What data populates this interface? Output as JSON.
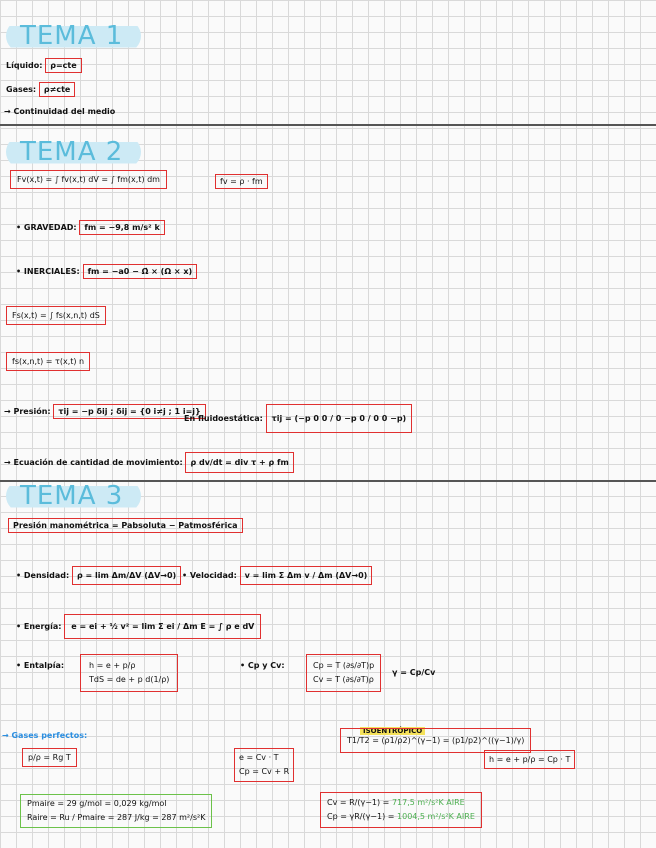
{
  "tema1": {
    "title": "TEMA 1",
    "liquido_label": "Líquido:",
    "liquido_box": "ρ=cte",
    "gases_label": "Gases:",
    "gases_box": "ρ≠cte",
    "continuidad": "→ Continuidad del medio"
  },
  "tema2": {
    "title": "TEMA 2",
    "fv_box": "Fv(x,t) = ∫ fv(x,t) dV = ∫ fm(x,t) dm",
    "fv2_box": "fv = ρ · fm",
    "gravedad_label": "• GRAVEDAD:",
    "gravedad_box": "fm = −9,8 m/s² k",
    "inerciales_label": "• INERCIALES:",
    "inerciales_box": "fm = −a0 − Ω̇ × (Ω × x)",
    "fs_box": "Fs(x,t) = ∫ fs(x,n,t) dS",
    "fs2_box": "fs(x,n,t) = τ(x,t) n",
    "presion_label": "→ Presión:",
    "presion_box": "τij = −p δij ; δij = {0 i≠j ; 1 i=j}",
    "fluido_label": "En fluidoestática:",
    "fluido_box": "τij = (−p 0 0 / 0 −p 0 / 0 0 −p)",
    "ecuacion_label": "→ Ecuación de cantidad de movimiento:",
    "ecuacion_box": "ρ dv/dt = div τ + ρ fm"
  },
  "tema3": {
    "title": "TEMA 3",
    "presion_box": "Presión manométrica = Pabsoluta − Patmosférica",
    "densidad_label": "• Densidad:",
    "densidad_box": "ρ = lim Δm/ΔV (ΔV→0)",
    "velocidad_label": "• Velocidad:",
    "velocidad_box": "v = lim Σ Δm v / Δm (ΔV→0)",
    "energia_label": "• Energía:",
    "energia_box": "e = ei + ½ v² = lim Σ ei / Δm     E = ∫ ρ e dV",
    "entalpia_label": "• Entalpía:",
    "entalpia_line1": "h = e + p/ρ",
    "entalpia_line2": "TdS = de + p d(1/ρ)",
    "cpcv_label": "• Cp y Cv:",
    "cp_line": "Cp = T (∂s/∂T)p",
    "cv_line": "Cv = T (∂s/∂T)ρ",
    "gamma": "γ = Cp/Cv",
    "gases_label": "→ Gases perfectos:",
    "gas1_box": "p/ρ = Rg T",
    "isentropico_tag": "ISOENTRÓPICO",
    "isentropico_box": "T1/T2 = (ρ1/ρ2)^(γ−1) = (p1/p2)^((γ−1)/γ)",
    "ecv_line1": "e = Cv · T",
    "ecv_line2": "Cp = Cv + R",
    "h_box": "h = e + p/ρ = Cp · T",
    "aire_line1": "Pmaire = 29 g/mol = 0,029 kg/mol",
    "aire_line2": "Raire = Ru / Pmaire = 287 J/kg = 287 m²/s²K",
    "cv_val_pre": "Cv = R/(γ−1) =",
    "cv_val": "717,5 m²/s²K",
    "cv_aire": "AIRE",
    "cp_val_pre": "Cp = γR/(γ−1) =",
    "cp_val": "1004,5 m²/s²K",
    "cp_aire": "AIRE"
  }
}
